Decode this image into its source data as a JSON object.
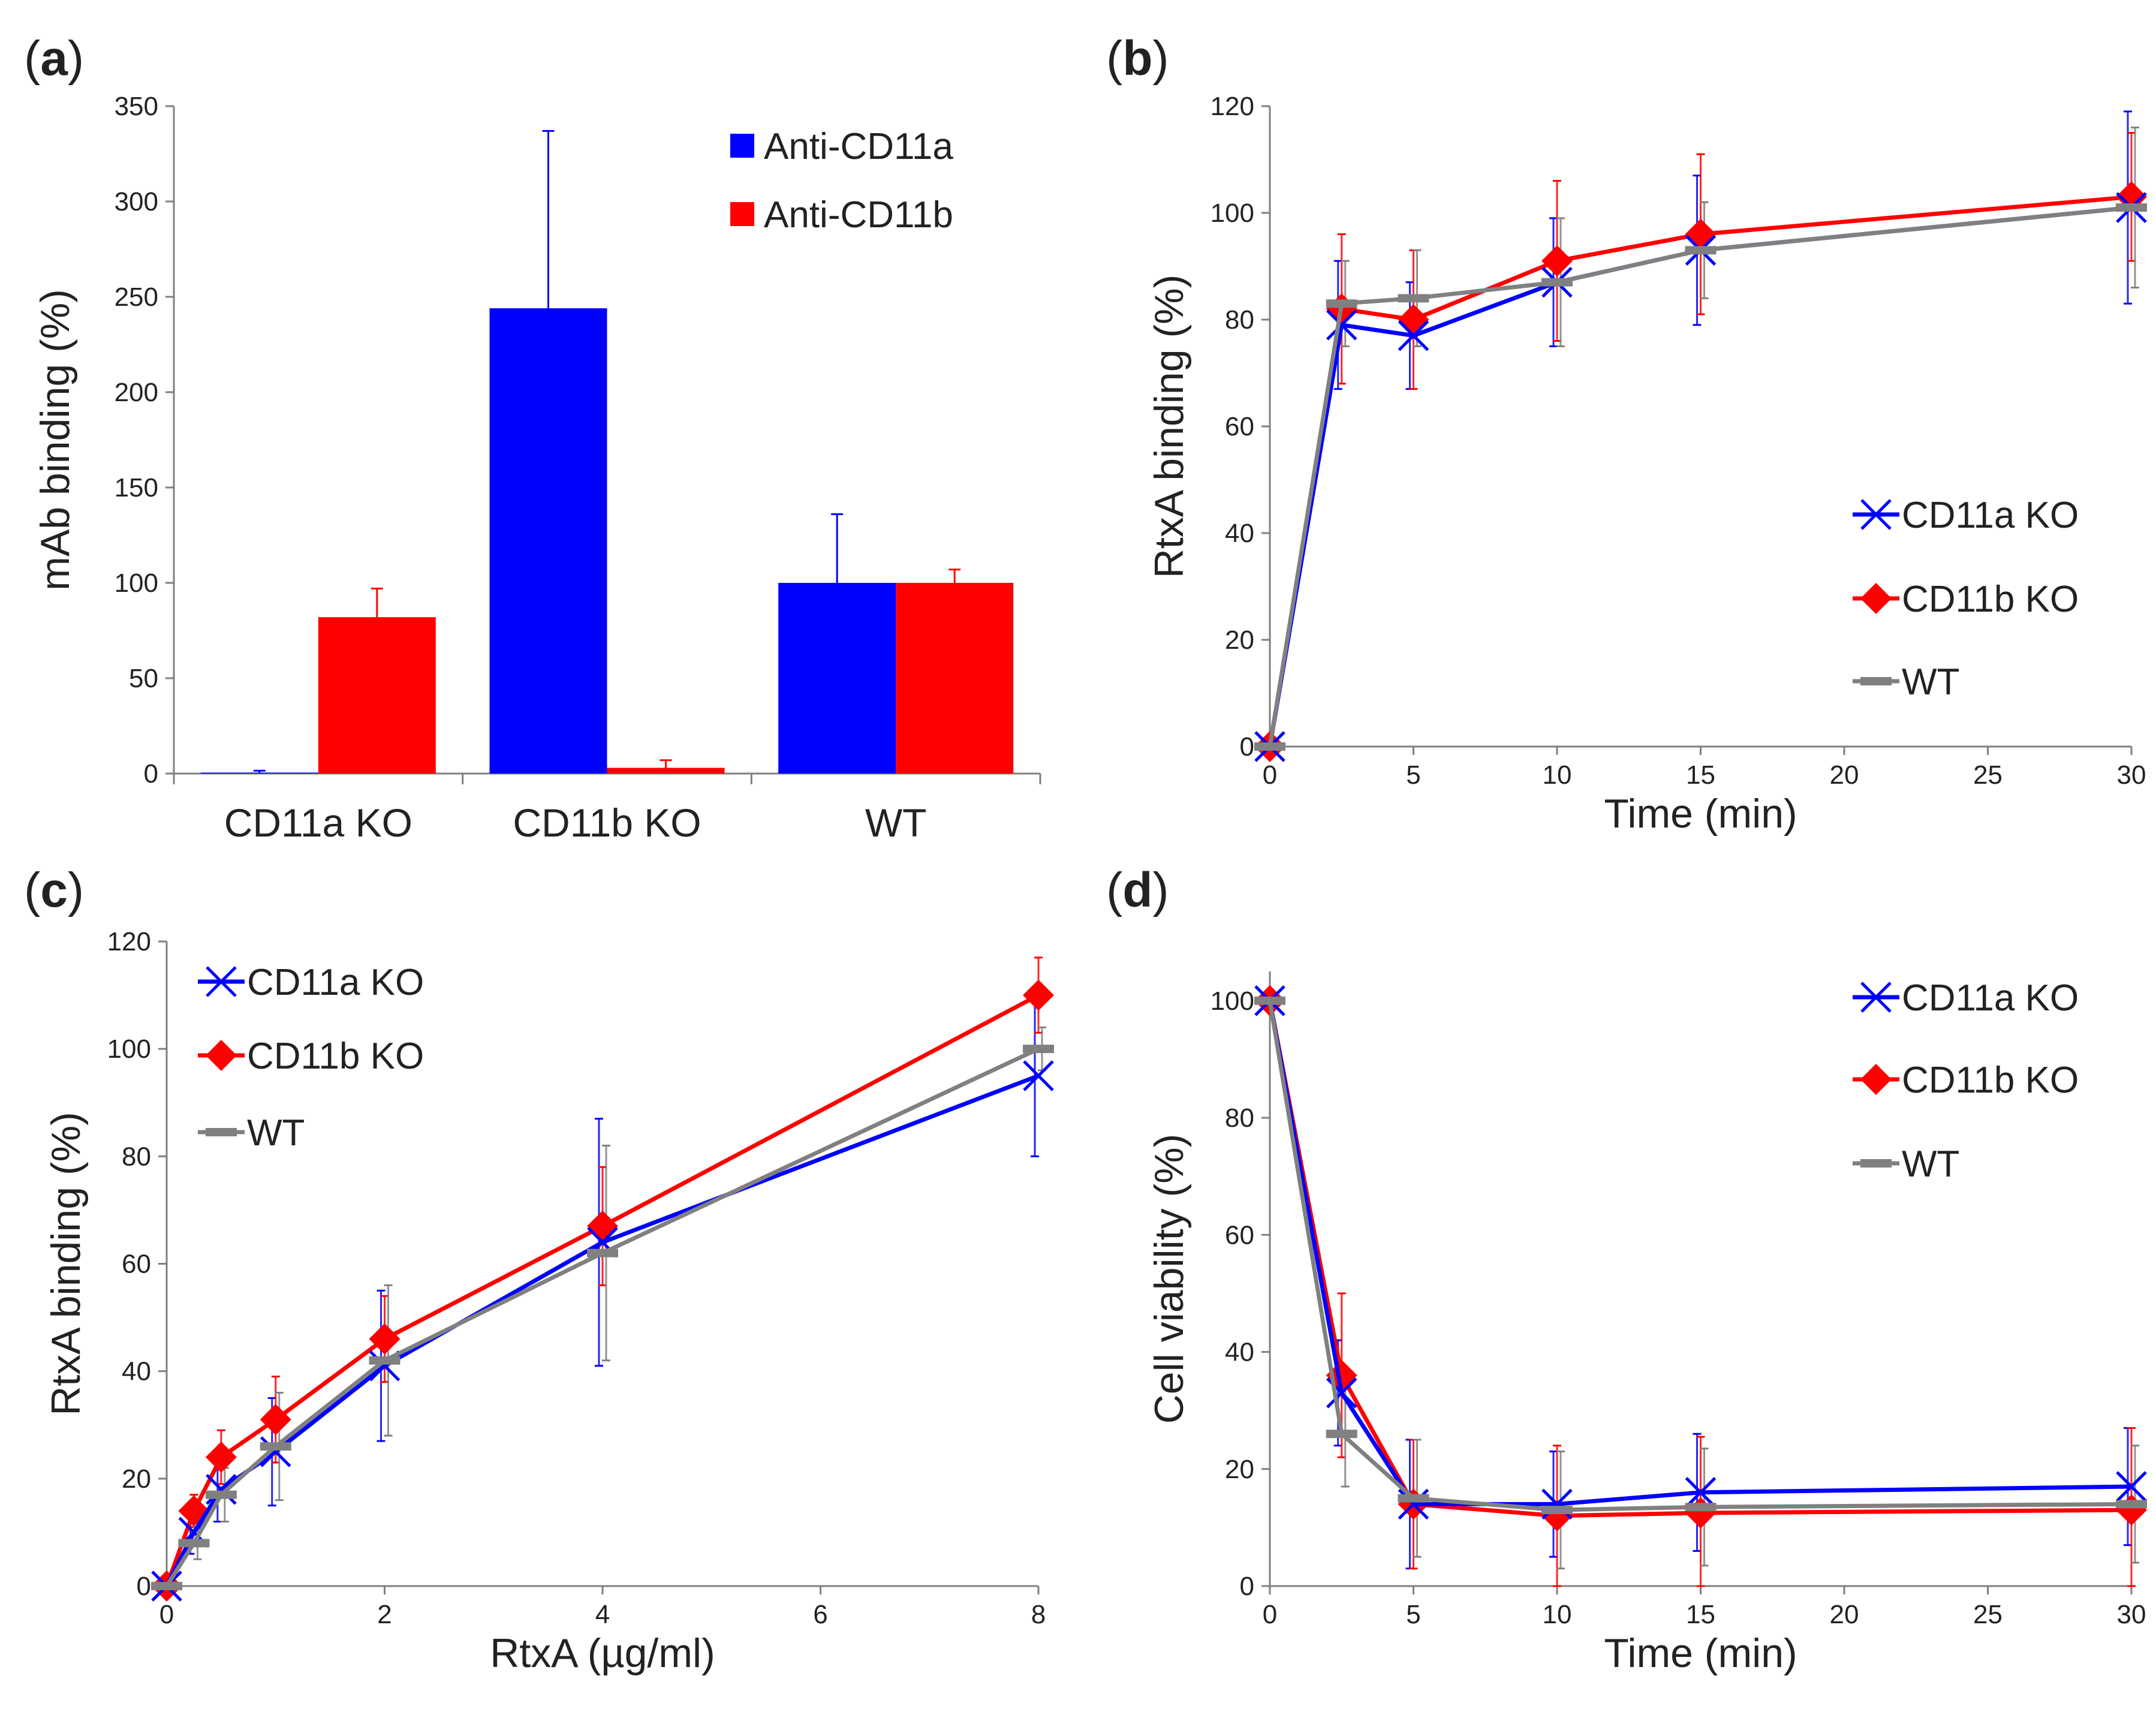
{
  "chart_data": [
    {
      "panel_label": "a",
      "type": "bar",
      "ylabel": "mAb binding (%)",
      "xlabel": "",
      "ylim": [
        0,
        350
      ],
      "yticks": [
        0,
        50,
        100,
        150,
        200,
        250,
        300,
        350
      ],
      "categories": [
        "CD11a KO",
        "CD11b KO",
        "WT"
      ],
      "legend_position": "top-right",
      "series": [
        {
          "name": "Anti-CD11a",
          "color": "#0000ff",
          "values": [
            0.5,
            244,
            100
          ],
          "errors": [
            1,
            93,
            36
          ]
        },
        {
          "name": "Anti-CD11b",
          "color": "#ff0000",
          "values": [
            82,
            3,
            100
          ],
          "errors": [
            15,
            4,
            7
          ]
        }
      ]
    },
    {
      "panel_label": "b",
      "type": "line",
      "xlabel": "Time (min)",
      "ylabel": "RtxA binding (%)",
      "xlim": [
        0,
        30
      ],
      "ylim": [
        0,
        120
      ],
      "xticks": [
        0,
        5,
        10,
        15,
        20,
        25,
        30
      ],
      "yticks": [
        0,
        20,
        40,
        60,
        80,
        100,
        120
      ],
      "legend_position": "bottom-right",
      "series": [
        {
          "name": "CD11a KO",
          "color": "#0000ff",
          "marker": "x",
          "x": [
            0,
            2.5,
            5,
            10,
            15,
            30
          ],
          "values": [
            0,
            79,
            77,
            87,
            93,
            101
          ],
          "errors": [
            0,
            12,
            10,
            12,
            14,
            18
          ]
        },
        {
          "name": "CD11b KO",
          "color": "#ff0000",
          "marker": "diamond",
          "x": [
            0,
            2.5,
            5,
            10,
            15,
            30
          ],
          "values": [
            0,
            82,
            80,
            91,
            96,
            103
          ],
          "errors": [
            0,
            14,
            13,
            15,
            15,
            12
          ]
        },
        {
          "name": "WT",
          "color": "#808080",
          "marker": "dash",
          "x": [
            0,
            2.5,
            5,
            10,
            15,
            30
          ],
          "values": [
            0,
            83,
            84,
            87,
            93,
            101
          ],
          "errors": [
            0,
            8,
            9,
            12,
            9,
            15
          ]
        }
      ]
    },
    {
      "panel_label": "c",
      "type": "line",
      "xlabel": "RtxA (µg/ml)",
      "ylabel": "RtxA binding (%)",
      "xlim": [
        0,
        8
      ],
      "ylim": [
        0,
        120
      ],
      "xticks": [
        0,
        2,
        4,
        6,
        8
      ],
      "yticks": [
        0,
        20,
        40,
        60,
        80,
        100,
        120
      ],
      "legend_position": "top-left",
      "series": [
        {
          "name": "CD11a KO",
          "color": "#0000ff",
          "marker": "x",
          "x": [
            0,
            0.25,
            0.5,
            1,
            2,
            4,
            8
          ],
          "values": [
            0,
            10,
            18,
            25,
            41,
            64,
            95
          ],
          "errors": [
            0,
            4,
            6,
            10,
            14,
            23,
            15
          ]
        },
        {
          "name": "CD11b KO",
          "color": "#ff0000",
          "marker": "diamond",
          "x": [
            0,
            0.25,
            0.5,
            1,
            2,
            4,
            8
          ],
          "values": [
            0,
            14,
            24,
            31,
            46,
            67,
            110
          ],
          "errors": [
            0,
            3,
            5,
            8,
            8,
            11,
            7
          ]
        },
        {
          "name": "WT",
          "color": "#808080",
          "marker": "dash",
          "x": [
            0,
            0.25,
            0.5,
            1,
            2,
            4,
            8
          ],
          "values": [
            0,
            8,
            17,
            26,
            42,
            62,
            100
          ],
          "errors": [
            0,
            3,
            5,
            10,
            14,
            20,
            4
          ]
        }
      ]
    },
    {
      "panel_label": "d",
      "type": "line",
      "xlabel": "Time (min)",
      "ylabel": "Cell viability (%)",
      "xlim": [
        0,
        30
      ],
      "ylim": [
        0,
        105
      ],
      "xticks": [
        0,
        5,
        10,
        15,
        20,
        25,
        30
      ],
      "yticks": [
        0,
        20,
        40,
        60,
        80,
        100
      ],
      "legend_position": "top-right",
      "series": [
        {
          "name": "CD11a KO",
          "color": "#0000ff",
          "marker": "x",
          "x": [
            0,
            2.5,
            5,
            10,
            15,
            30
          ],
          "values": [
            100,
            33,
            14,
            14,
            16,
            17
          ],
          "errors": [
            0,
            9,
            11,
            9,
            10,
            10
          ]
        },
        {
          "name": "CD11b KO",
          "color": "#ff0000",
          "marker": "diamond",
          "x": [
            0,
            2.5,
            5,
            10,
            15,
            30
          ],
          "values": [
            100,
            36,
            14,
            12,
            12.5,
            13
          ],
          "errors": [
            0,
            14,
            11,
            12,
            13,
            14
          ]
        },
        {
          "name": "WT",
          "color": "#808080",
          "marker": "dash",
          "x": [
            0,
            2.5,
            5,
            10,
            15,
            30
          ],
          "values": [
            100,
            26,
            15,
            13,
            13.5,
            14
          ],
          "errors": [
            0,
            9,
            10,
            10,
            10,
            10
          ]
        }
      ]
    }
  ]
}
